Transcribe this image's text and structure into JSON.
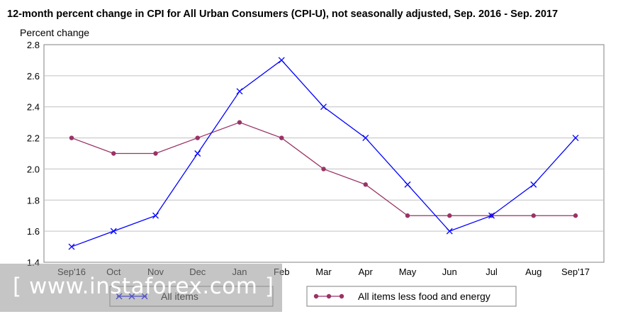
{
  "chart_data": {
    "type": "line",
    "title": "12-month percent change in CPI for All Urban Consumers (CPI-U), not seasonally adjusted, Sep. 2016 - Sep. 2017",
    "ylabel": "Percent change",
    "xlabel": "",
    "ylim": [
      1.4,
      2.8
    ],
    "yticks": [
      "1.4",
      "1.6",
      "1.8",
      "2.0",
      "2.2",
      "2.4",
      "2.6",
      "2.8"
    ],
    "categories": [
      "Sep'16",
      "Oct",
      "Nov",
      "Dec",
      "Jan",
      "Feb",
      "Mar",
      "Apr",
      "May",
      "Jun",
      "Jul",
      "Aug",
      "Sep'17"
    ],
    "grid": "horizontal",
    "legend_position": "bottom",
    "series": [
      {
        "name": "All items",
        "color": "#0000ff",
        "marker": "x",
        "values": [
          1.5,
          1.6,
          1.7,
          2.1,
          2.5,
          2.7,
          2.4,
          2.2,
          1.9,
          1.6,
          1.7,
          1.9,
          2.2
        ]
      },
      {
        "name": "All items less food and energy",
        "color": "#993366",
        "marker": "circle",
        "values": [
          2.2,
          2.1,
          2.1,
          2.2,
          2.3,
          2.2,
          2.0,
          1.9,
          1.7,
          1.7,
          1.7,
          1.7,
          1.7
        ]
      }
    ]
  },
  "watermark": {
    "text": "[ www.instaforex.com ]"
  }
}
